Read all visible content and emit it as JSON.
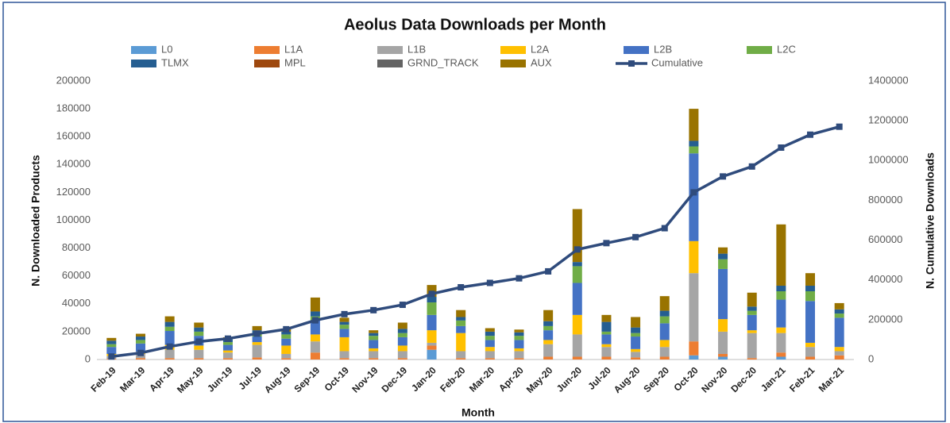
{
  "chart_data": {
    "type": "stacked_bar_line",
    "title": "Aeolus Data Downloads per Month",
    "x_label": "Month",
    "y_label": "N. Downloaded Products",
    "y2_label": "N. Cumulative Downloads",
    "categories": [
      "Feb-19",
      "Mar-19",
      "Apr-19",
      "May-19",
      "Jun-19",
      "Jul-19",
      "Aug-19",
      "Sep-19",
      "Oct-19",
      "Nov-19",
      "Dec-19",
      "Jan-20",
      "Feb-20",
      "Mar-20",
      "Apr-20",
      "May-20",
      "Jun-20",
      "Jul-20",
      "Aug-20",
      "Sep-20",
      "Oct-20",
      "Nov-20",
      "Dec-20",
      "Jan-21",
      "Feb-21",
      "Mar-21"
    ],
    "ylim": [
      0,
      200000
    ],
    "yticks": [
      0,
      20000,
      40000,
      60000,
      80000,
      100000,
      120000,
      140000,
      160000,
      180000,
      200000
    ],
    "y2lim": [
      0,
      1400000
    ],
    "y2ticks": [
      0,
      200000,
      400000,
      600000,
      800000,
      1000000,
      1200000,
      1400000
    ],
    "grid": false,
    "series": [
      {
        "name": "L0",
        "color": "#5b9bd5",
        "values": [
          0,
          0,
          0,
          0,
          0,
          0,
          0,
          0,
          0,
          0,
          0,
          7000,
          0,
          0,
          0,
          0,
          0,
          0,
          0,
          0,
          3000,
          2000,
          0,
          2000,
          0,
          0
        ]
      },
      {
        "name": "L1A",
        "color": "#ed7d31",
        "values": [
          500,
          1000,
          1000,
          1000,
          1000,
          1500,
          1000,
          5000,
          1000,
          1000,
          1000,
          3000,
          1000,
          1000,
          1000,
          2000,
          2000,
          2000,
          1500,
          2000,
          10000,
          2000,
          1000,
          3000,
          2000,
          3000
        ]
      },
      {
        "name": "L1B",
        "color": "#a5a5a5",
        "values": [
          2000,
          3000,
          6000,
          6000,
          4000,
          9000,
          3000,
          8000,
          5000,
          5000,
          5000,
          2000,
          5000,
          5000,
          5000,
          9000,
          16000,
          7000,
          4000,
          7000,
          49000,
          16000,
          18000,
          14000,
          7000,
          3000
        ]
      },
      {
        "name": "L2A",
        "color": "#ffc000",
        "values": [
          1500,
          1500,
          3500,
          3000,
          1500,
          2000,
          6000,
          5000,
          10000,
          2000,
          4000,
          9000,
          13000,
          3000,
          2000,
          3000,
          14000,
          2000,
          2000,
          5000,
          23000,
          9000,
          2000,
          4000,
          3000,
          3000
        ]
      },
      {
        "name": "L2B",
        "color": "#4472c4",
        "values": [
          5000,
          6000,
          10000,
          7000,
          4000,
          4000,
          5000,
          10000,
          6000,
          6000,
          6000,
          11000,
          5000,
          5000,
          6000,
          7000,
          23000,
          7000,
          9000,
          12000,
          63000,
          36000,
          11000,
          20000,
          30000,
          21000
        ]
      },
      {
        "name": "L2C",
        "color": "#70ad47",
        "values": [
          2000,
          2500,
          3000,
          3000,
          2000,
          2500,
          3000,
          3000,
          3000,
          3000,
          3000,
          9000,
          4000,
          3000,
          3000,
          3000,
          12000,
          2000,
          2500,
          5000,
          5000,
          7000,
          3000,
          6000,
          7000,
          3000
        ]
      },
      {
        "name": "TLMX",
        "color": "#255e91",
        "values": [
          2500,
          2500,
          3500,
          3000,
          2000,
          2000,
          2000,
          3500,
          2000,
          2000,
          3000,
          4000,
          2500,
          3000,
          2500,
          3500,
          3000,
          7000,
          4000,
          4000,
          4000,
          4000,
          3000,
          4000,
          4000,
          3000
        ]
      },
      {
        "name": "MPL",
        "color": "#9e480e",
        "values": [
          0,
          0,
          0,
          0,
          0,
          0,
          0,
          0,
          0,
          0,
          0,
          0,
          0,
          0,
          0,
          0,
          0,
          0,
          0,
          0,
          0,
          0,
          0,
          0,
          0,
          0
        ]
      },
      {
        "name": "GRND_TRACK",
        "color": "#636363",
        "values": [
          0,
          0,
          0,
          0,
          0,
          0,
          0,
          0,
          0,
          0,
          0,
          0,
          0,
          0,
          0,
          0,
          0,
          0,
          0,
          0,
          0,
          0,
          0,
          0,
          0,
          0
        ]
      },
      {
        "name": "AUX",
        "color": "#997300",
        "values": [
          2000,
          2000,
          4000,
          3500,
          1500,
          3000,
          2000,
          10000,
          3000,
          2000,
          4500,
          8500,
          5000,
          2500,
          2000,
          8000,
          38000,
          5000,
          7500,
          10500,
          23000,
          4500,
          10000,
          44000,
          9000,
          4500
        ]
      },
      {
        "name": "Cumulative",
        "color": "#2f4b7c",
        "axis": "y2",
        "values": [
          15000,
          33000,
          65000,
          90000,
          105000,
          130000,
          152000,
          197000,
          228000,
          248000,
          275000,
          330000,
          363000,
          385000,
          408000,
          443000,
          553000,
          585000,
          615000,
          660000,
          840000,
          920000,
          970000,
          1065000,
          1130000,
          1170000
        ]
      }
    ]
  }
}
